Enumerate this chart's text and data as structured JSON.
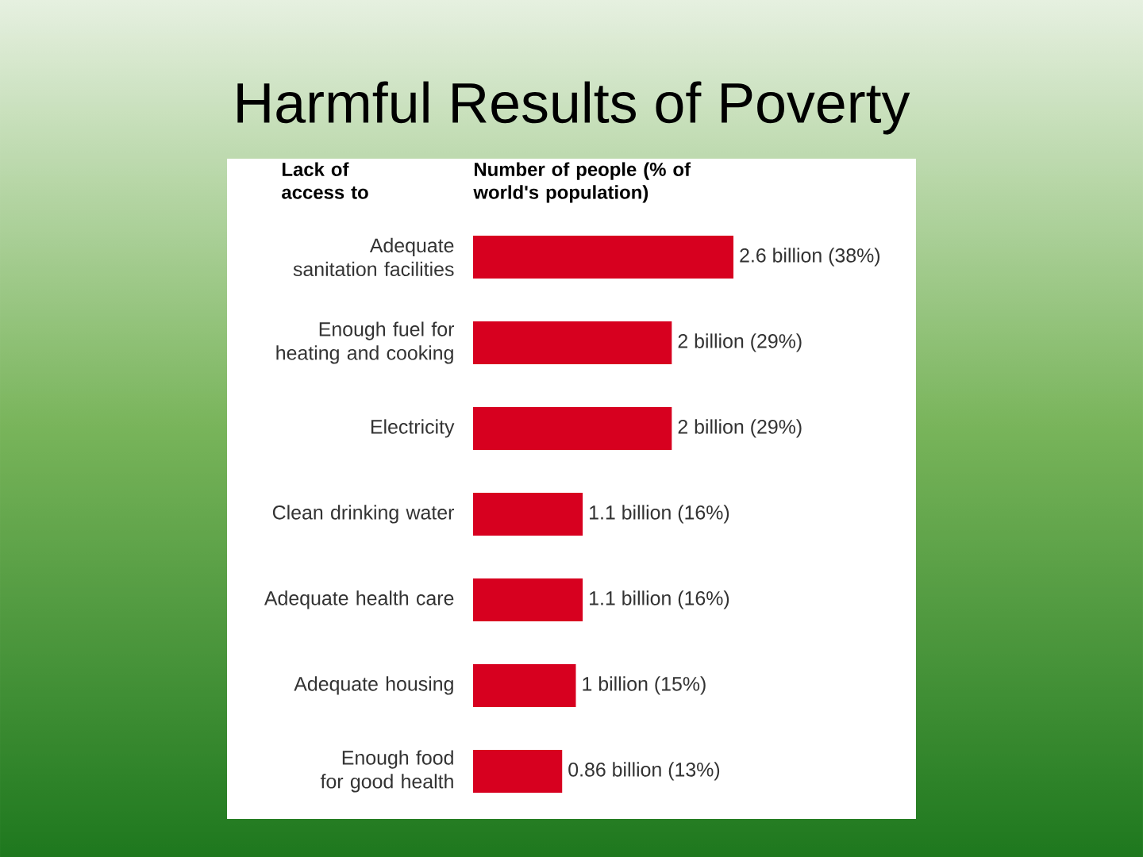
{
  "chart_data": {
    "type": "bar",
    "orientation": "horizontal",
    "title": "Harmful Results of Poverty",
    "ylabel": "Lack of access to",
    "xlabel": "Number of people (% of world's population)",
    "categories": [
      "Adequate sanitation facilities",
      "Enough fuel for heating and cooking",
      "Electricity",
      "Clean drinking water",
      "Adequate health care",
      "Adequate housing",
      "Enough food for good health"
    ],
    "values": [
      38,
      29,
      29,
      16,
      16,
      15,
      13
    ],
    "value_labels": [
      "2.6 billion (38%)",
      "2 billion (29%)",
      "2 billion (29%)",
      "1.1 billion (16%)",
      "1.1 billion (16%)",
      "1 billion (15%)",
      "0.86 billion (13%)"
    ],
    "color": "#d7001f"
  }
}
